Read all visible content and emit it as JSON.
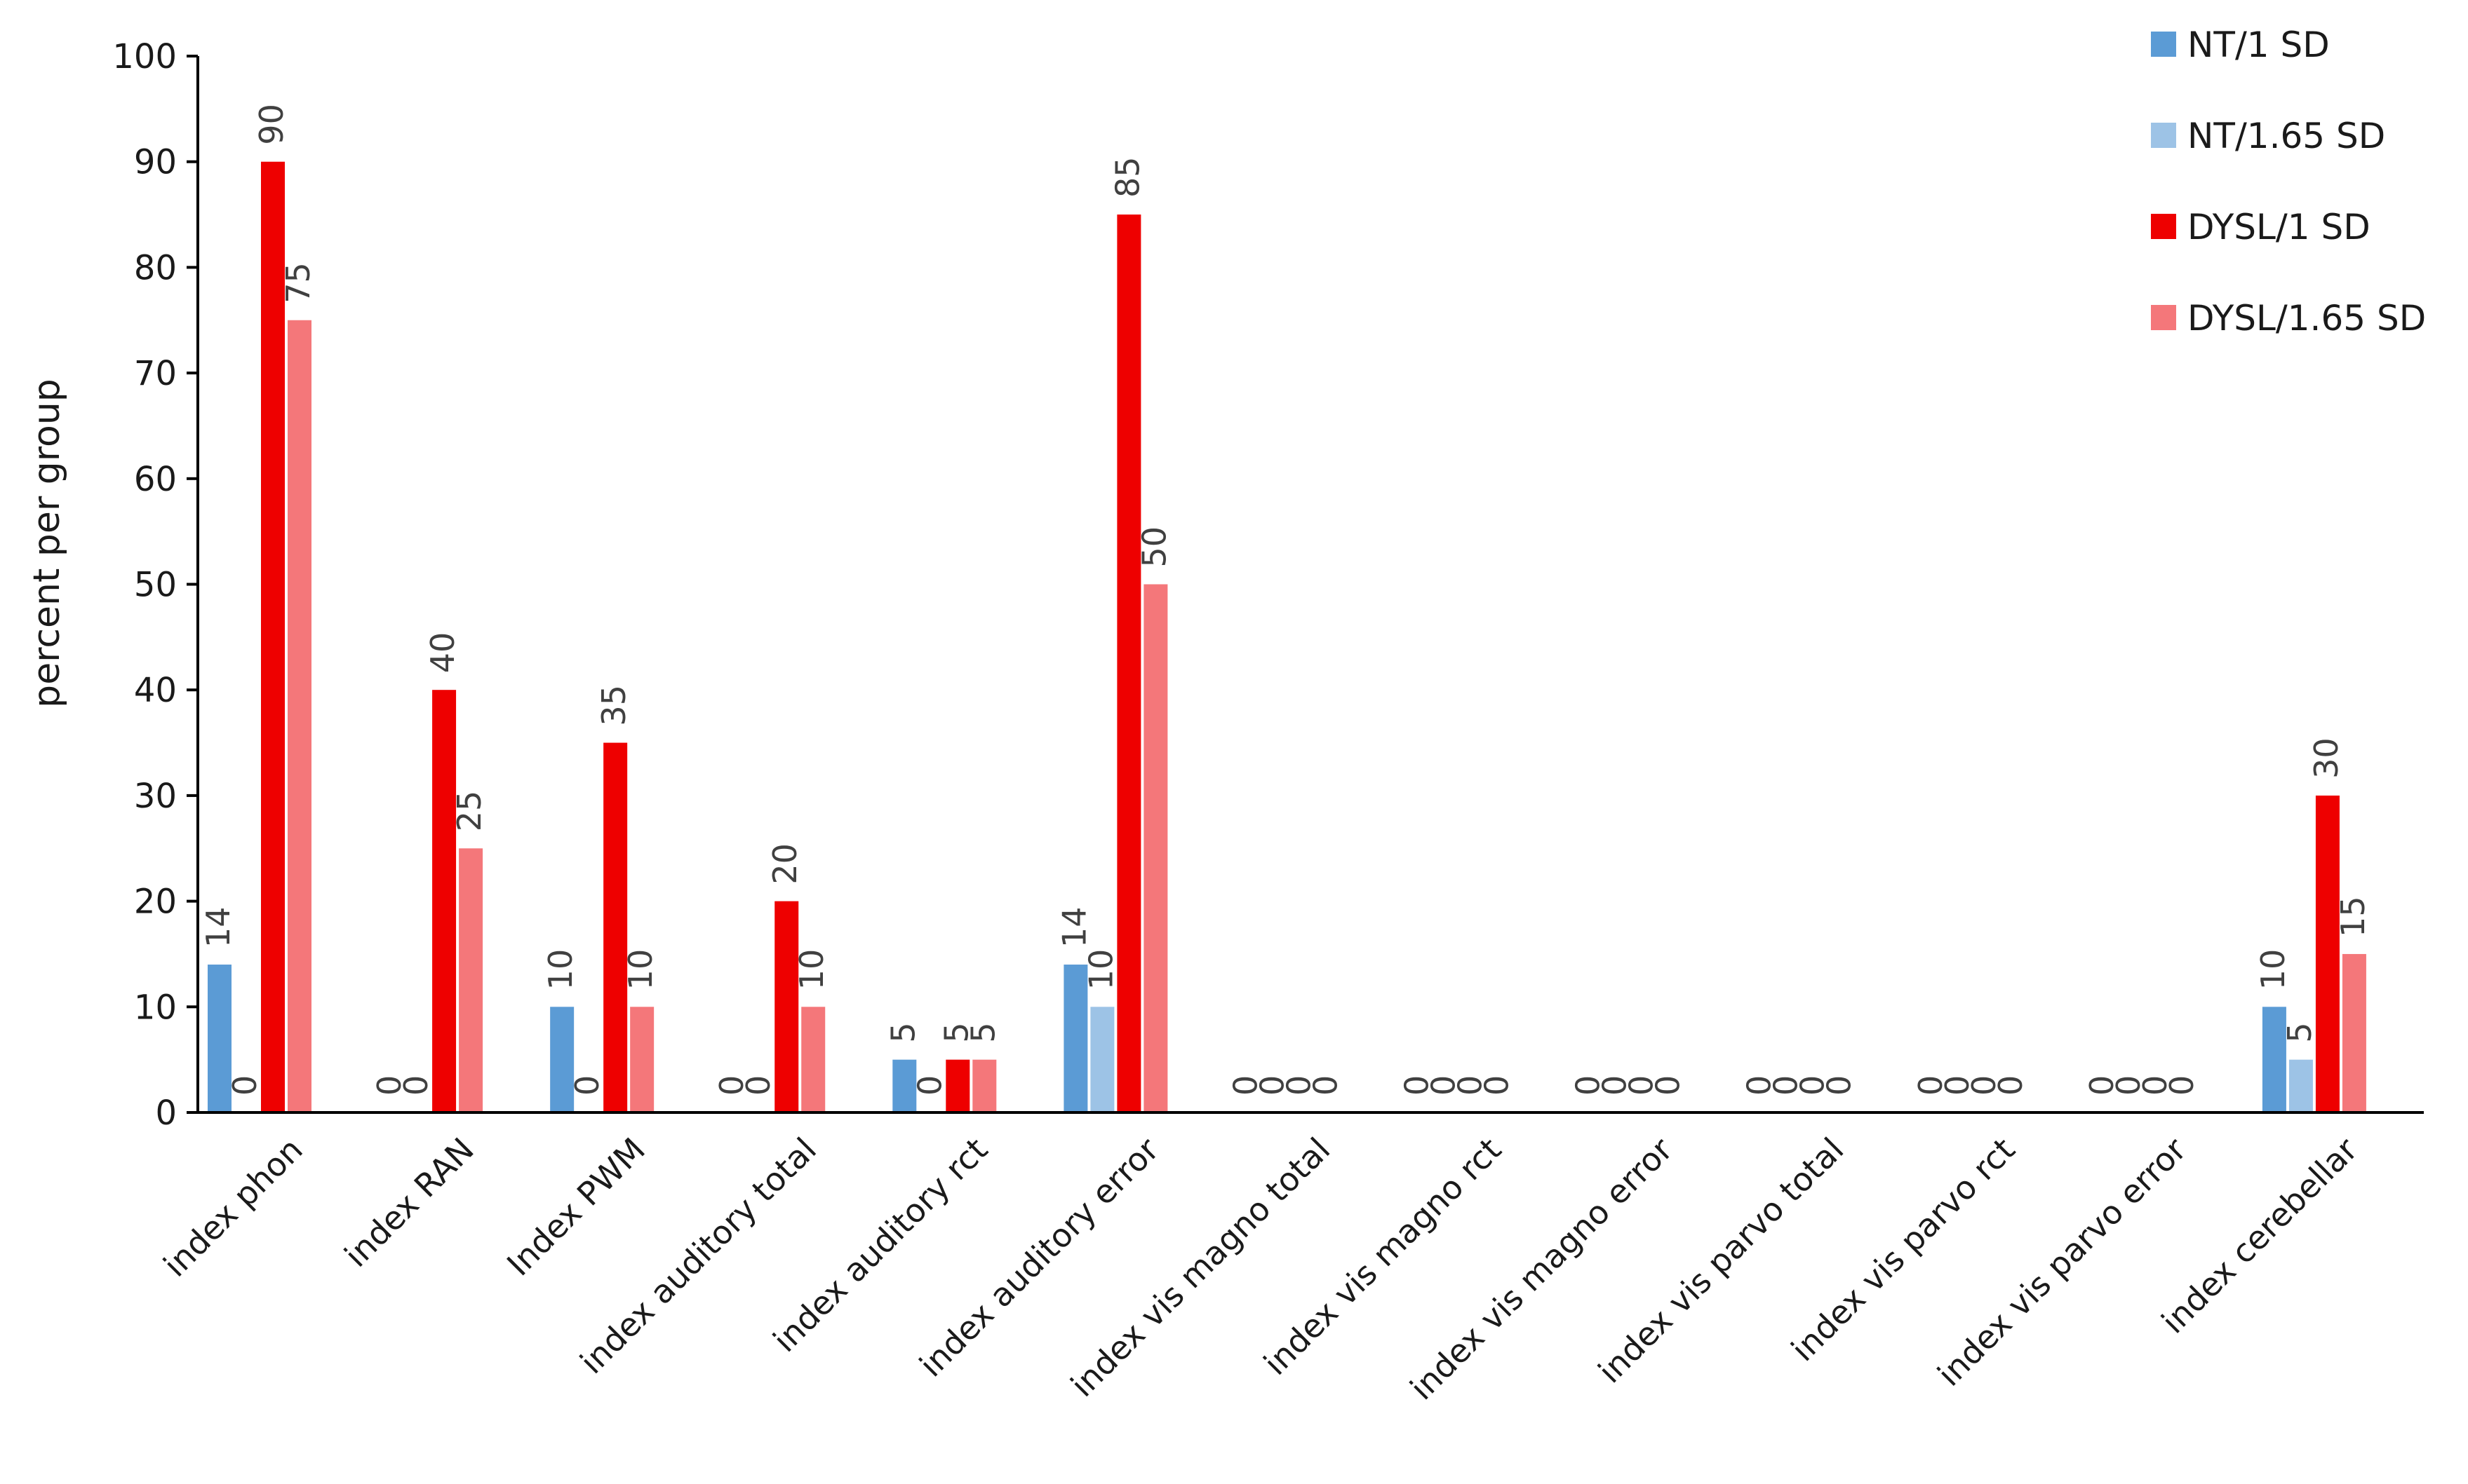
{
  "chart_data": {
    "type": "bar",
    "title": "",
    "xlabel": "",
    "ylabel": "percent per group",
    "ylim": [
      0,
      100
    ],
    "yticks": [
      0,
      10,
      20,
      30,
      40,
      50,
      60,
      70,
      80,
      90,
      100
    ],
    "grid": false,
    "legend_position": "top-right",
    "categories": [
      "index phon",
      "index RAN",
      "Index PWM",
      "index auditory total",
      "index auditory rct",
      "index auditory error",
      "index vis magno total",
      "index vis magno rct",
      "index vis magno error",
      "index vis parvo total",
      "index vis parvo rct",
      "index vis parvo error",
      "index cerebellar"
    ],
    "series": [
      {
        "name": "NT/1 SD",
        "color": "#5b9bd5",
        "values": [
          14,
          0,
          10,
          0,
          5,
          14,
          0,
          0,
          0,
          0,
          0,
          0,
          10
        ],
        "labels": [
          "14",
          "0",
          "10",
          "0",
          "5",
          "14",
          "0",
          "0",
          "0",
          "0",
          "0",
          "0",
          "10"
        ]
      },
      {
        "name": "NT/1.65 SD",
        "color": "#9dc3e6",
        "values": [
          0,
          0,
          0,
          0,
          0,
          10,
          0,
          0,
          0,
          0,
          0,
          0,
          5
        ],
        "labels": [
          "0",
          "0",
          "0",
          "0",
          "0",
          "10",
          "0",
          "0",
          "0",
          "0",
          "0",
          "0",
          "5"
        ]
      },
      {
        "name": "DYSL/1 SD",
        "color": "#ee0000",
        "values": [
          90,
          40,
          35,
          20,
          5,
          85,
          0,
          0,
          0,
          0,
          0,
          0,
          30
        ],
        "labels": [
          "90",
          "40",
          "35",
          "20",
          "5",
          "85",
          "0",
          "0",
          "0",
          "0",
          "0",
          "0",
          "30"
        ]
      },
      {
        "name": "DYSL/1.65 SD",
        "color": "#f4777a",
        "values": [
          75,
          25,
          10,
          10,
          5,
          50,
          0,
          0,
          0,
          0,
          0,
          0,
          15
        ],
        "labels": [
          "75",
          "25",
          "10",
          "10",
          "5",
          "50",
          "0",
          "0",
          "0",
          "0",
          "0",
          "0",
          "15"
        ]
      }
    ]
  }
}
